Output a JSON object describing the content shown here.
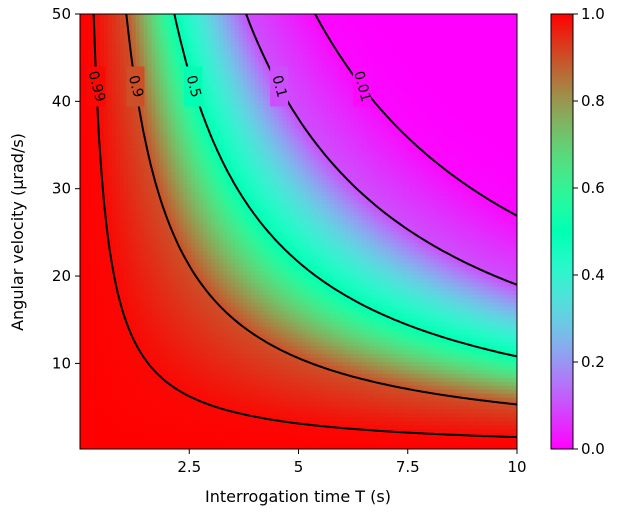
{
  "chart_data": {
    "type": "heatmap",
    "title": "",
    "xlabel": "Interrogation time T (s)",
    "ylabel": "Angular velocity (μrad/s)",
    "xlim": [
      0,
      10
    ],
    "ylim": [
      0.2,
      50
    ],
    "x_ticks": [
      2.5,
      5,
      7.5,
      10
    ],
    "x_tick_labels": [
      "2.5",
      "5",
      "7.5",
      "10"
    ],
    "y_ticks": [
      10,
      20,
      30,
      40,
      50
    ],
    "y_tick_labels": [
      "10",
      "20",
      "30",
      "40",
      "50"
    ],
    "colormap": "rainbow",
    "colorbar": {
      "min": 0.0,
      "max": 1.0,
      "ticks": [
        0.0,
        0.2,
        0.4,
        0.6,
        0.8,
        1.0
      ],
      "tick_labels": [
        "0.0",
        "0.2",
        "0.4",
        "0.6",
        "0.8",
        "1.0"
      ]
    },
    "contours": [
      {
        "level": 0.99,
        "label": "0.99",
        "product_xy": 15.6
      },
      {
        "level": 0.9,
        "label": "0.9",
        "product_xy": 53
      },
      {
        "level": 0.5,
        "label": "0.5",
        "product_xy": 108
      },
      {
        "level": 0.1,
        "label": "0.1",
        "product_xy": 190
      },
      {
        "level": 0.01,
        "label": "0.01",
        "product_xy": 269
      }
    ],
    "contour_color": "#000000",
    "grid": false
  }
}
